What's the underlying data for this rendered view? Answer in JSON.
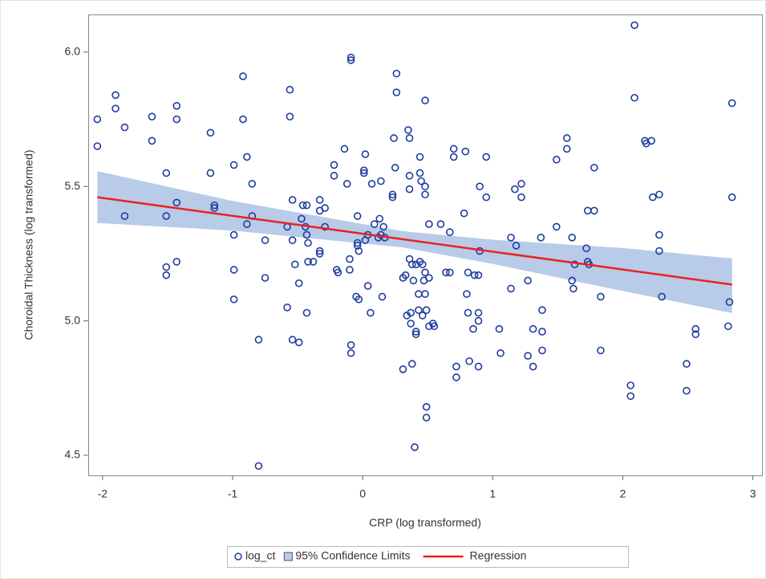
{
  "chart_data": {
    "type": "scatter",
    "x_label": "CRP (log transformed)",
    "y_label": "Choroidal Thickness (log transformed)",
    "xlim": [
      -2.11,
      3.07
    ],
    "ylim": [
      4.425,
      6.14
    ],
    "xticks": [
      -2,
      -1,
      0,
      1,
      2,
      3
    ],
    "yticks": [
      4.5,
      {
        "value": 5.0,
        "label": "5.0"
      },
      5.5,
      {
        "value": 6.0,
        "label": "6.0"
      }
    ],
    "series": [
      {
        "type": "band",
        "name": "95% Confidence Limits",
        "color": "#b8cbe8",
        "x": [
          -2.04,
          -1,
          0,
          0.3,
          1,
          2,
          2.84
        ],
        "upper": [
          5.557,
          5.446,
          5.36,
          5.334,
          5.302,
          5.271,
          5.232
        ],
        "lower": [
          5.364,
          5.336,
          5.288,
          5.274,
          5.212,
          5.111,
          5.029
        ]
      },
      {
        "type": "scatter",
        "name": "log_ct",
        "color": "#1f3c9e",
        "x": [
          -2.04,
          -2.04,
          -1.9,
          -1.9,
          -1.83,
          -1.83,
          -1.62,
          -1.62,
          -1.51,
          -1.51,
          -1.51,
          -1.51,
          -1.43,
          -1.43,
          -1.43,
          -1.43,
          -1.17,
          -1.17,
          -1.14,
          -1.14,
          -0.99,
          -0.99,
          -0.99,
          -0.99,
          -0.92,
          -0.92,
          -0.89,
          -0.89,
          -0.85,
          -0.85,
          -0.8,
          -0.8,
          -0.75,
          -0.75,
          -0.58,
          -0.58,
          -0.56,
          -0.56,
          -0.54,
          -0.54,
          -0.54,
          -0.52,
          -0.49,
          -0.49,
          -0.47,
          -0.46,
          -0.44,
          -0.43,
          -0.43,
          -0.43,
          -0.42,
          -0.42,
          -0.38,
          -0.33,
          -0.33,
          -0.33,
          -0.33,
          -0.29,
          -0.29,
          -0.22,
          -0.22,
          -0.2,
          -0.19,
          -0.14,
          -0.12,
          -0.1,
          -0.1,
          -0.09,
          -0.09,
          -0.09,
          -0.09,
          -0.05,
          -0.03,
          -0.04,
          -0.04,
          -0.04,
          -0.03,
          0.01,
          0.01,
          0.02,
          0.02,
          0.04,
          0.04,
          0.06,
          0.07,
          0.09,
          0.12,
          0.13,
          0.14,
          0.14,
          0.15,
          0.16,
          0.17,
          0.23,
          0.23,
          0.24,
          0.25,
          0.26,
          0.26,
          0.31,
          0.31,
          0.33,
          0.34,
          0.35,
          0.36,
          0.36,
          0.36,
          0.36,
          0.37,
          0.37,
          0.38,
          0.38,
          0.39,
          0.4,
          0.41,
          0.41,
          0.41,
          0.43,
          0.43,
          0.44,
          0.44,
          0.44,
          0.45,
          0.46,
          0.46,
          0.47,
          0.48,
          0.48,
          0.48,
          0.48,
          0.48,
          0.49,
          0.49,
          0.49,
          0.51,
          0.51,
          0.51,
          0.54,
          0.55,
          0.6,
          0.64,
          0.67,
          0.67,
          0.7,
          0.7,
          0.72,
          0.72,
          0.78,
          0.79,
          0.8,
          0.81,
          0.81,
          0.82,
          0.85,
          0.86,
          0.9,
          0.9,
          0.89,
          0.89,
          0.89,
          0.89,
          0.95,
          0.95,
          1.05,
          1.06,
          1.14,
          1.14,
          1.17,
          1.18,
          1.22,
          1.22,
          1.27,
          1.27,
          1.31,
          1.31,
          1.37,
          1.38,
          1.38,
          1.38,
          1.49,
          1.49,
          1.57,
          1.57,
          1.61,
          1.61,
          1.62,
          1.63,
          1.72,
          1.73,
          1.73,
          1.74,
          1.78,
          1.78,
          1.83,
          1.83,
          2.09,
          2.09,
          2.06,
          2.06,
          2.17,
          2.18,
          2.22,
          2.23,
          2.28,
          2.28,
          2.28,
          2.3,
          2.49,
          2.49,
          2.56,
          2.56,
          2.84,
          2.84,
          2.82,
          2.81
        ],
        "values": [
          5.75,
          5.65,
          5.84,
          5.79,
          5.72,
          5.39,
          5.76,
          5.67,
          5.55,
          5.39,
          5.2,
          5.17,
          5.8,
          5.75,
          5.44,
          5.22,
          5.7,
          5.55,
          5.43,
          5.42,
          5.58,
          5.32,
          5.19,
          5.08,
          5.91,
          5.75,
          5.61,
          5.36,
          5.51,
          5.39,
          4.93,
          4.46,
          5.3,
          5.16,
          5.35,
          5.05,
          5.86,
          5.76,
          5.45,
          5.3,
          4.93,
          5.21,
          4.92,
          5.14,
          5.38,
          5.43,
          5.35,
          5.03,
          5.43,
          5.32,
          5.29,
          5.22,
          5.22,
          5.45,
          5.41,
          5.26,
          5.25,
          5.42,
          5.35,
          5.58,
          5.54,
          5.19,
          5.18,
          5.64,
          5.51,
          5.23,
          5.19,
          5.98,
          5.97,
          4.91,
          4.88,
          5.09,
          5.08,
          5.39,
          5.29,
          5.28,
          5.26,
          5.56,
          5.55,
          5.62,
          5.3,
          5.32,
          5.13,
          5.03,
          5.51,
          5.36,
          5.31,
          5.38,
          5.32,
          5.52,
          5.09,
          5.35,
          5.31,
          5.46,
          5.47,
          5.68,
          5.57,
          5.92,
          5.85,
          5.16,
          4.82,
          5.17,
          5.02,
          5.71,
          5.68,
          5.54,
          5.23,
          5.49,
          5.03,
          4.99,
          4.84,
          5.21,
          5.15,
          4.53,
          5.21,
          4.96,
          4.95,
          5.1,
          5.04,
          5.55,
          5.22,
          5.61,
          5.52,
          5.21,
          5.02,
          5.15,
          5.5,
          5.47,
          5.82,
          5.18,
          5.1,
          4.68,
          4.64,
          5.04,
          4.98,
          5.36,
          5.16,
          4.99,
          4.98,
          5.36,
          5.18,
          5.33,
          5.18,
          5.64,
          5.61,
          4.83,
          4.79,
          5.4,
          5.63,
          5.1,
          5.18,
          5.03,
          4.85,
          4.97,
          5.17,
          5.5,
          5.26,
          5.17,
          5.03,
          5.0,
          4.83,
          5.61,
          5.46,
          4.97,
          4.88,
          5.31,
          5.12,
          5.49,
          5.28,
          5.51,
          5.46,
          5.15,
          4.87,
          4.97,
          4.83,
          5.31,
          5.04,
          4.96,
          4.89,
          5.6,
          5.35,
          5.68,
          5.64,
          5.31,
          5.15,
          5.12,
          5.21,
          5.27,
          5.41,
          5.22,
          5.21,
          5.57,
          5.41,
          5.09,
          4.89,
          6.1,
          5.83,
          4.76,
          4.72,
          5.67,
          5.66,
          5.67,
          5.46,
          5.47,
          5.32,
          5.26,
          5.09,
          4.84,
          4.74,
          4.97,
          4.95,
          5.81,
          5.46,
          5.07,
          4.98
        ]
      },
      {
        "type": "line",
        "name": "Regression",
        "color": "#e8231f",
        "x": [
          -2.04,
          2.84
        ],
        "values": [
          5.46,
          5.135
        ]
      }
    ]
  }
}
